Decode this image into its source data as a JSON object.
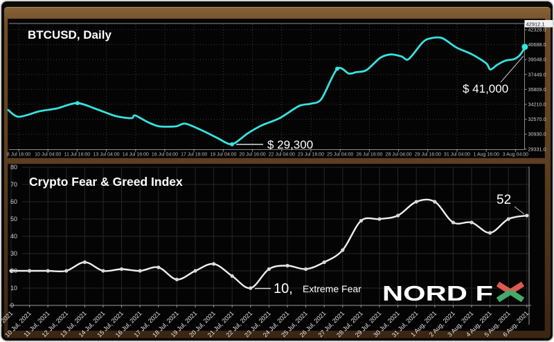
{
  "window": {
    "border_color": "#d6d6d6",
    "frame_gradient_top": "#876237",
    "frame_gradient_bottom": "#3a2613",
    "panel_bg": "#040404"
  },
  "logo": {
    "text": "NORD F",
    "x_letter": "X",
    "x_red": "#df5a4e",
    "x_green": "#43aa69"
  },
  "chart_data": [
    {
      "id": "btcusd-daily",
      "type": "line",
      "title": "BTCUSD, Daily",
      "line_color": "#35e3e0",
      "current_price_label": "42912.1",
      "y_tick_labels": [
        "42328.0",
        "40688.0",
        "39048.0",
        "37449.0",
        "35809.0",
        "34210.0",
        "32570.0",
        "30930.0",
        "29331.0"
      ],
      "x_tick_labels": [
        "8 Jul 16:00",
        "10 Jul 04:00",
        "11 Jul 16:00",
        "13 Jul 04:00",
        "14 Jul 16:00",
        "16 Jul 04:00",
        "17 Jul 16:00",
        "19 Jul 04:00",
        "20 Jul 16:00",
        "22 Jul 04:00",
        "23 Jul 16:00",
        "25 Jul 04:00",
        "26 Jul 16:00",
        "28 Jul 04:00",
        "29 Jul 16:00",
        "31 Jul 04:00",
        "1 Aug 16:00",
        "3 Aug 04:00"
      ],
      "points": [
        [
          -0.36,
          33600
        ],
        [
          0,
          32860
        ],
        [
          0.71,
          33460
        ],
        [
          1.3,
          33760
        ],
        [
          2.01,
          34350
        ],
        [
          2.73,
          33610
        ],
        [
          3.32,
          32940
        ],
        [
          3.86,
          32710
        ],
        [
          3.98,
          33010
        ],
        [
          4.43,
          32260
        ],
        [
          4.81,
          31820
        ],
        [
          5.38,
          31820
        ],
        [
          5.71,
          32110
        ],
        [
          6.33,
          31290
        ],
        [
          6.8,
          30550
        ],
        [
          7.3,
          29880
        ],
        [
          7.84,
          31070
        ],
        [
          8.34,
          31960
        ],
        [
          8.93,
          32710
        ],
        [
          9.6,
          34050
        ],
        [
          10.0,
          34280
        ],
        [
          10.36,
          34800
        ],
        [
          10.9,
          38080
        ],
        [
          11.3,
          37560
        ],
        [
          11.54,
          37710
        ],
        [
          11.9,
          37930
        ],
        [
          12.37,
          39270
        ],
        [
          12.73,
          39640
        ],
        [
          13.1,
          39420
        ],
        [
          13.34,
          39120
        ],
        [
          13.81,
          40910
        ],
        [
          14.05,
          41360
        ],
        [
          14.48,
          41430
        ],
        [
          14.98,
          40390
        ],
        [
          15.52,
          39640
        ],
        [
          16.0,
          38670
        ],
        [
          16.14,
          38000
        ],
        [
          16.38,
          38520
        ],
        [
          16.66,
          38970
        ],
        [
          16.94,
          39120
        ],
        [
          17.13,
          39500
        ],
        [
          17.25,
          40020
        ],
        [
          17.32,
          40460
        ]
      ],
      "markers": [
        [
          2.01,
          34350
        ],
        [
          7.3,
          29880
        ],
        [
          10.9,
          38080
        ],
        [
          17.32,
          40460
        ]
      ],
      "annotations": {
        "low": {
          "text": "$ 29,300"
        },
        "high": {
          "text": "$ 41,000"
        }
      }
    },
    {
      "id": "crypto-fear-greed-index",
      "type": "line",
      "title": "Crypto Fear & Greed Index",
      "line_color": "#efefef",
      "ylim": [
        0,
        80
      ],
      "y_ticks": [
        0,
        10,
        20,
        30,
        40,
        50,
        60,
        70,
        80
      ],
      "categories": [
        "9 Jul, 2021",
        "10 Jul, 2021",
        "11 Jul, 2021",
        "12 Jul, 2021",
        "13 Jul, 2021",
        "14 Jul, 2021",
        "15 Jul, 2021",
        "16 Jul, 2021",
        "17 Jul, 2021",
        "18 Jul, 2021",
        "19 Jul, 2021",
        "20 Jul, 2021",
        "21 Jul, 2021",
        "22 Jul, 2021",
        "23 Jul, 2021",
        "24 Jul, 2021",
        "25 Jul, 2021",
        "26 Jul, 2021",
        "27 Jul, 2021",
        "28 Jul, 2021",
        "29 Jul, 2021",
        "30 Jul, 2021",
        "31 Jul, 2021",
        "1 Aug, 2021",
        "2 Aug, 2021",
        "3 Aug, 2021",
        "4 Aug, 2021",
        "5 Aug, 2021",
        "6 Aug, 2021"
      ],
      "values": [
        20,
        20,
        20,
        20,
        25,
        20,
        21,
        20,
        22,
        15,
        20,
        24,
        17,
        10,
        21,
        23,
        21,
        25,
        32,
        49,
        50,
        52,
        60,
        60,
        48,
        48,
        42,
        50,
        52
      ],
      "annotations": {
        "low": {
          "num": "10,",
          "label": "Extreme Fear"
        },
        "last": {
          "text": "52"
        }
      }
    }
  ]
}
